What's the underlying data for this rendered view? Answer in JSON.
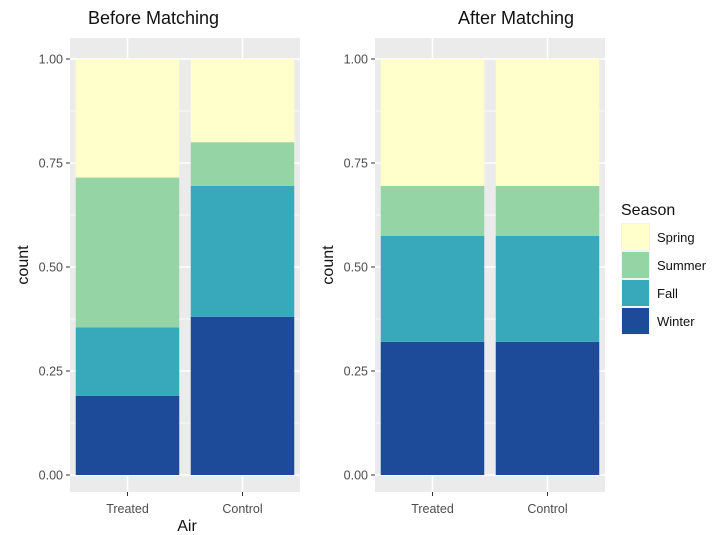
{
  "chart_data": [
    {
      "type": "bar",
      "stacked": true,
      "title": "Before Matching",
      "xlabel": "Air",
      "ylabel": "count",
      "ylim": [
        0,
        1
      ],
      "yticks": [
        "0.00",
        "0.25",
        "0.50",
        "0.75",
        "1.00"
      ],
      "categories": [
        "Treated",
        "Control"
      ],
      "series": [
        {
          "name": "Winter",
          "values": [
            0.19,
            0.38
          ]
        },
        {
          "name": "Fall",
          "values": [
            0.165,
            0.315
          ]
        },
        {
          "name": "Summer",
          "values": [
            0.36,
            0.105
          ]
        },
        {
          "name": "Spring",
          "values": [
            0.285,
            0.2
          ]
        }
      ]
    },
    {
      "type": "bar",
      "stacked": true,
      "title": "After Matching",
      "xlabel": "",
      "ylabel": "count",
      "ylim": [
        0,
        1
      ],
      "yticks": [
        "0.00",
        "0.25",
        "0.50",
        "0.75",
        "1.00"
      ],
      "categories": [
        "Treated",
        "Control"
      ],
      "series": [
        {
          "name": "Winter",
          "values": [
            0.32,
            0.32
          ]
        },
        {
          "name": "Fall",
          "values": [
            0.255,
            0.255
          ]
        },
        {
          "name": "Summer",
          "values": [
            0.12,
            0.12
          ]
        },
        {
          "name": "Spring",
          "values": [
            0.305,
            0.305
          ]
        }
      ]
    }
  ],
  "legend": {
    "title": "Season",
    "placement": "right",
    "items": [
      {
        "name": "Spring",
        "color": "#FFFFCC"
      },
      {
        "name": "Summer",
        "color": "#95D4A4"
      },
      {
        "name": "Fall",
        "color": "#38A8BB"
      },
      {
        "name": "Winter",
        "color": "#1D4A99"
      }
    ]
  },
  "colors": {
    "panel_bg": "#EBEBEB",
    "grid": "#FFFFFF"
  }
}
